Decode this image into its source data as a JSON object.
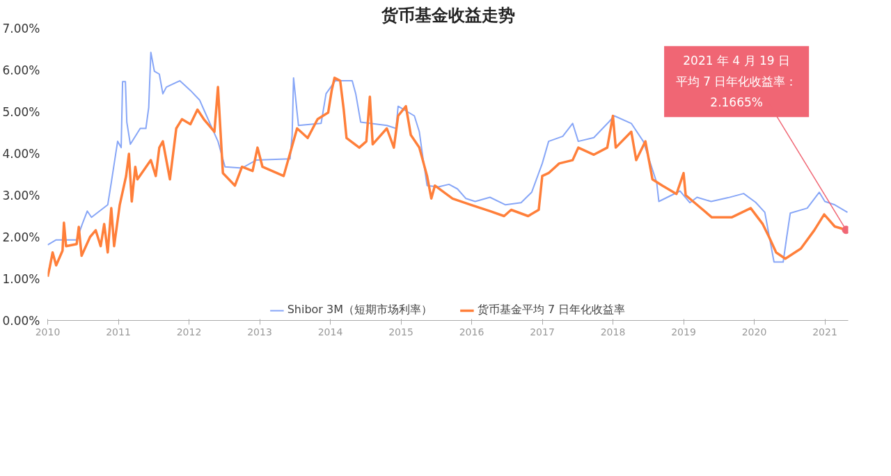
{
  "chart_data": {
    "type": "line",
    "title": "货币基金收益走势",
    "xlim": [
      2010,
      2021.33
    ],
    "xticks": [
      2010,
      2011,
      2012,
      2013,
      2014,
      2015,
      2016,
      2017,
      2018,
      2019,
      2020,
      2021
    ],
    "ylim": [
      0,
      7
    ],
    "yticks": [
      {
        "value": 0,
        "label": "0.00%"
      },
      {
        "value": 1,
        "label": "1.00%"
      },
      {
        "value": 2,
        "label": "2.00%"
      },
      {
        "value": 3,
        "label": "3.00%"
      },
      {
        "value": 4,
        "label": "4.00%"
      },
      {
        "value": 5,
        "label": "5.00%"
      },
      {
        "value": 6,
        "label": "6.00%"
      },
      {
        "value": 7,
        "label": "7.00%"
      }
    ],
    "grid": false,
    "legend": "bottom",
    "series": [
      {
        "name": "Shibor 3M（短期市场利率）",
        "color": "#87a6f7",
        "x": [
          2010.0,
          2010.12,
          2010.41,
          2010.49,
          2010.56,
          2010.62,
          2010.85,
          2010.9,
          2010.96,
          2010.99,
          2011.04,
          2011.06,
          2011.1,
          2011.12,
          2011.17,
          2011.31,
          2011.39,
          2011.43,
          2011.46,
          2011.51,
          2011.58,
          2011.63,
          2011.68,
          2011.87,
          2012.02,
          2012.15,
          2012.21,
          2012.31,
          2012.41,
          2012.51,
          2012.75,
          2012.95,
          2013.43,
          2013.46,
          2013.48,
          2013.53,
          2013.55,
          2013.87,
          2013.94,
          2014.07,
          2014.31,
          2014.36,
          2014.43,
          2014.8,
          2014.93,
          2014.96,
          2015.19,
          2015.26,
          2015.31,
          2015.37,
          2015.53,
          2015.68,
          2015.8,
          2015.92,
          2016.05,
          2016.26,
          2016.48,
          2016.7,
          2016.85,
          2017.0,
          2017.09,
          2017.29,
          2017.43,
          2017.51,
          2017.73,
          2017.94,
          2018.02,
          2018.26,
          2018.43,
          2018.62,
          2018.65,
          2018.95,
          2019.09,
          2019.19,
          2019.39,
          2019.63,
          2019.85,
          2020.02,
          2020.15,
          2020.28,
          2020.41,
          2020.46,
          2020.51,
          2020.75,
          2020.92,
          2021.0,
          2021.14,
          2021.32
        ],
        "values": [
          1.81,
          1.93,
          1.93,
          2.31,
          2.62,
          2.47,
          2.77,
          3.3,
          3.96,
          4.29,
          4.14,
          5.72,
          5.72,
          4.75,
          4.22,
          4.6,
          4.6,
          5.1,
          6.42,
          5.97,
          5.9,
          5.43,
          5.59,
          5.74,
          5.51,
          5.28,
          5.05,
          4.67,
          4.29,
          3.68,
          3.65,
          3.84,
          3.87,
          4.44,
          5.81,
          4.98,
          4.67,
          4.72,
          5.43,
          5.74,
          5.74,
          5.43,
          4.75,
          4.67,
          4.6,
          5.13,
          4.9,
          4.52,
          3.91,
          3.23,
          3.2,
          3.26,
          3.15,
          2.92,
          2.85,
          2.95,
          2.77,
          2.82,
          3.07,
          3.76,
          4.29,
          4.41,
          4.72,
          4.29,
          4.38,
          4.75,
          4.9,
          4.72,
          4.29,
          3.3,
          2.85,
          3.1,
          2.82,
          2.95,
          2.85,
          2.94,
          3.04,
          2.83,
          2.59,
          1.4,
          1.4,
          2.0,
          2.57,
          2.69,
          3.07,
          2.85,
          2.77,
          2.59
        ]
      },
      {
        "name": "货币基金平均 7 日年化收益率",
        "color": "#ff7f3a",
        "x": [
          2010.0,
          2010.03,
          2010.07,
          2010.12,
          2010.21,
          2010.23,
          2010.26,
          2010.41,
          2010.44,
          2010.48,
          2010.6,
          2010.68,
          2010.75,
          2010.8,
          2010.85,
          2010.9,
          2010.94,
          2011.02,
          2011.11,
          2011.15,
          2011.19,
          2011.24,
          2011.27,
          2011.46,
          2011.53,
          2011.58,
          2011.63,
          2011.73,
          2011.82,
          2011.9,
          2012.02,
          2012.12,
          2012.21,
          2012.36,
          2012.41,
          2012.48,
          2012.65,
          2012.75,
          2012.9,
          2012.97,
          2013.04,
          2013.34,
          2013.53,
          2013.68,
          2013.82,
          2013.97,
          2014.02,
          2014.06,
          2014.14,
          2014.19,
          2014.23,
          2014.41,
          2014.51,
          2014.56,
          2014.6,
          2014.8,
          2014.9,
          2014.96,
          2015.07,
          2015.14,
          2015.26,
          2015.37,
          2015.43,
          2015.48,
          2015.73,
          2015.99,
          2016.26,
          2016.46,
          2016.56,
          2016.8,
          2016.95,
          2017.0,
          2017.09,
          2017.24,
          2017.43,
          2017.51,
          2017.73,
          2017.92,
          2018.0,
          2018.04,
          2018.26,
          2018.33,
          2018.46,
          2018.56,
          2018.7,
          2018.9,
          2019.0,
          2019.03,
          2019.24,
          2019.4,
          2019.68,
          2019.95,
          2020.12,
          2020.21,
          2020.31,
          2020.44,
          2020.66,
          2020.85,
          2020.99,
          2021.14,
          2021.3
        ],
        "values": [
          1.05,
          1.28,
          1.63,
          1.32,
          1.67,
          2.34,
          1.78,
          1.83,
          2.24,
          1.55,
          2.0,
          2.16,
          1.78,
          2.31,
          1.63,
          2.69,
          1.78,
          2.77,
          3.46,
          3.99,
          2.85,
          3.68,
          3.38,
          3.84,
          3.46,
          4.14,
          4.29,
          3.38,
          4.6,
          4.82,
          4.7,
          5.05,
          4.82,
          4.52,
          5.59,
          3.53,
          3.23,
          3.68,
          3.58,
          4.14,
          3.68,
          3.46,
          4.6,
          4.37,
          4.82,
          4.98,
          5.51,
          5.81,
          5.74,
          5.05,
          4.37,
          4.14,
          4.29,
          5.36,
          4.22,
          4.6,
          4.14,
          4.9,
          5.13,
          4.44,
          4.14,
          3.46,
          2.92,
          3.23,
          2.92,
          2.77,
          2.62,
          2.5,
          2.65,
          2.5,
          2.65,
          3.46,
          3.53,
          3.76,
          3.84,
          4.14,
          3.97,
          4.14,
          4.9,
          4.14,
          4.52,
          3.84,
          4.29,
          3.38,
          3.23,
          3.03,
          3.53,
          3.0,
          2.7,
          2.47,
          2.47,
          2.69,
          2.31,
          2.0,
          1.63,
          1.48,
          1.72,
          2.16,
          2.54,
          2.25,
          2.17
        ]
      }
    ],
    "annotations": [
      "2021 年 4 月 19 日",
      "平均 7 日年化收益率：",
      {
        "text": "2.1665%",
        "x": 2021.3,
        "y": 2.17
      }
    ]
  }
}
